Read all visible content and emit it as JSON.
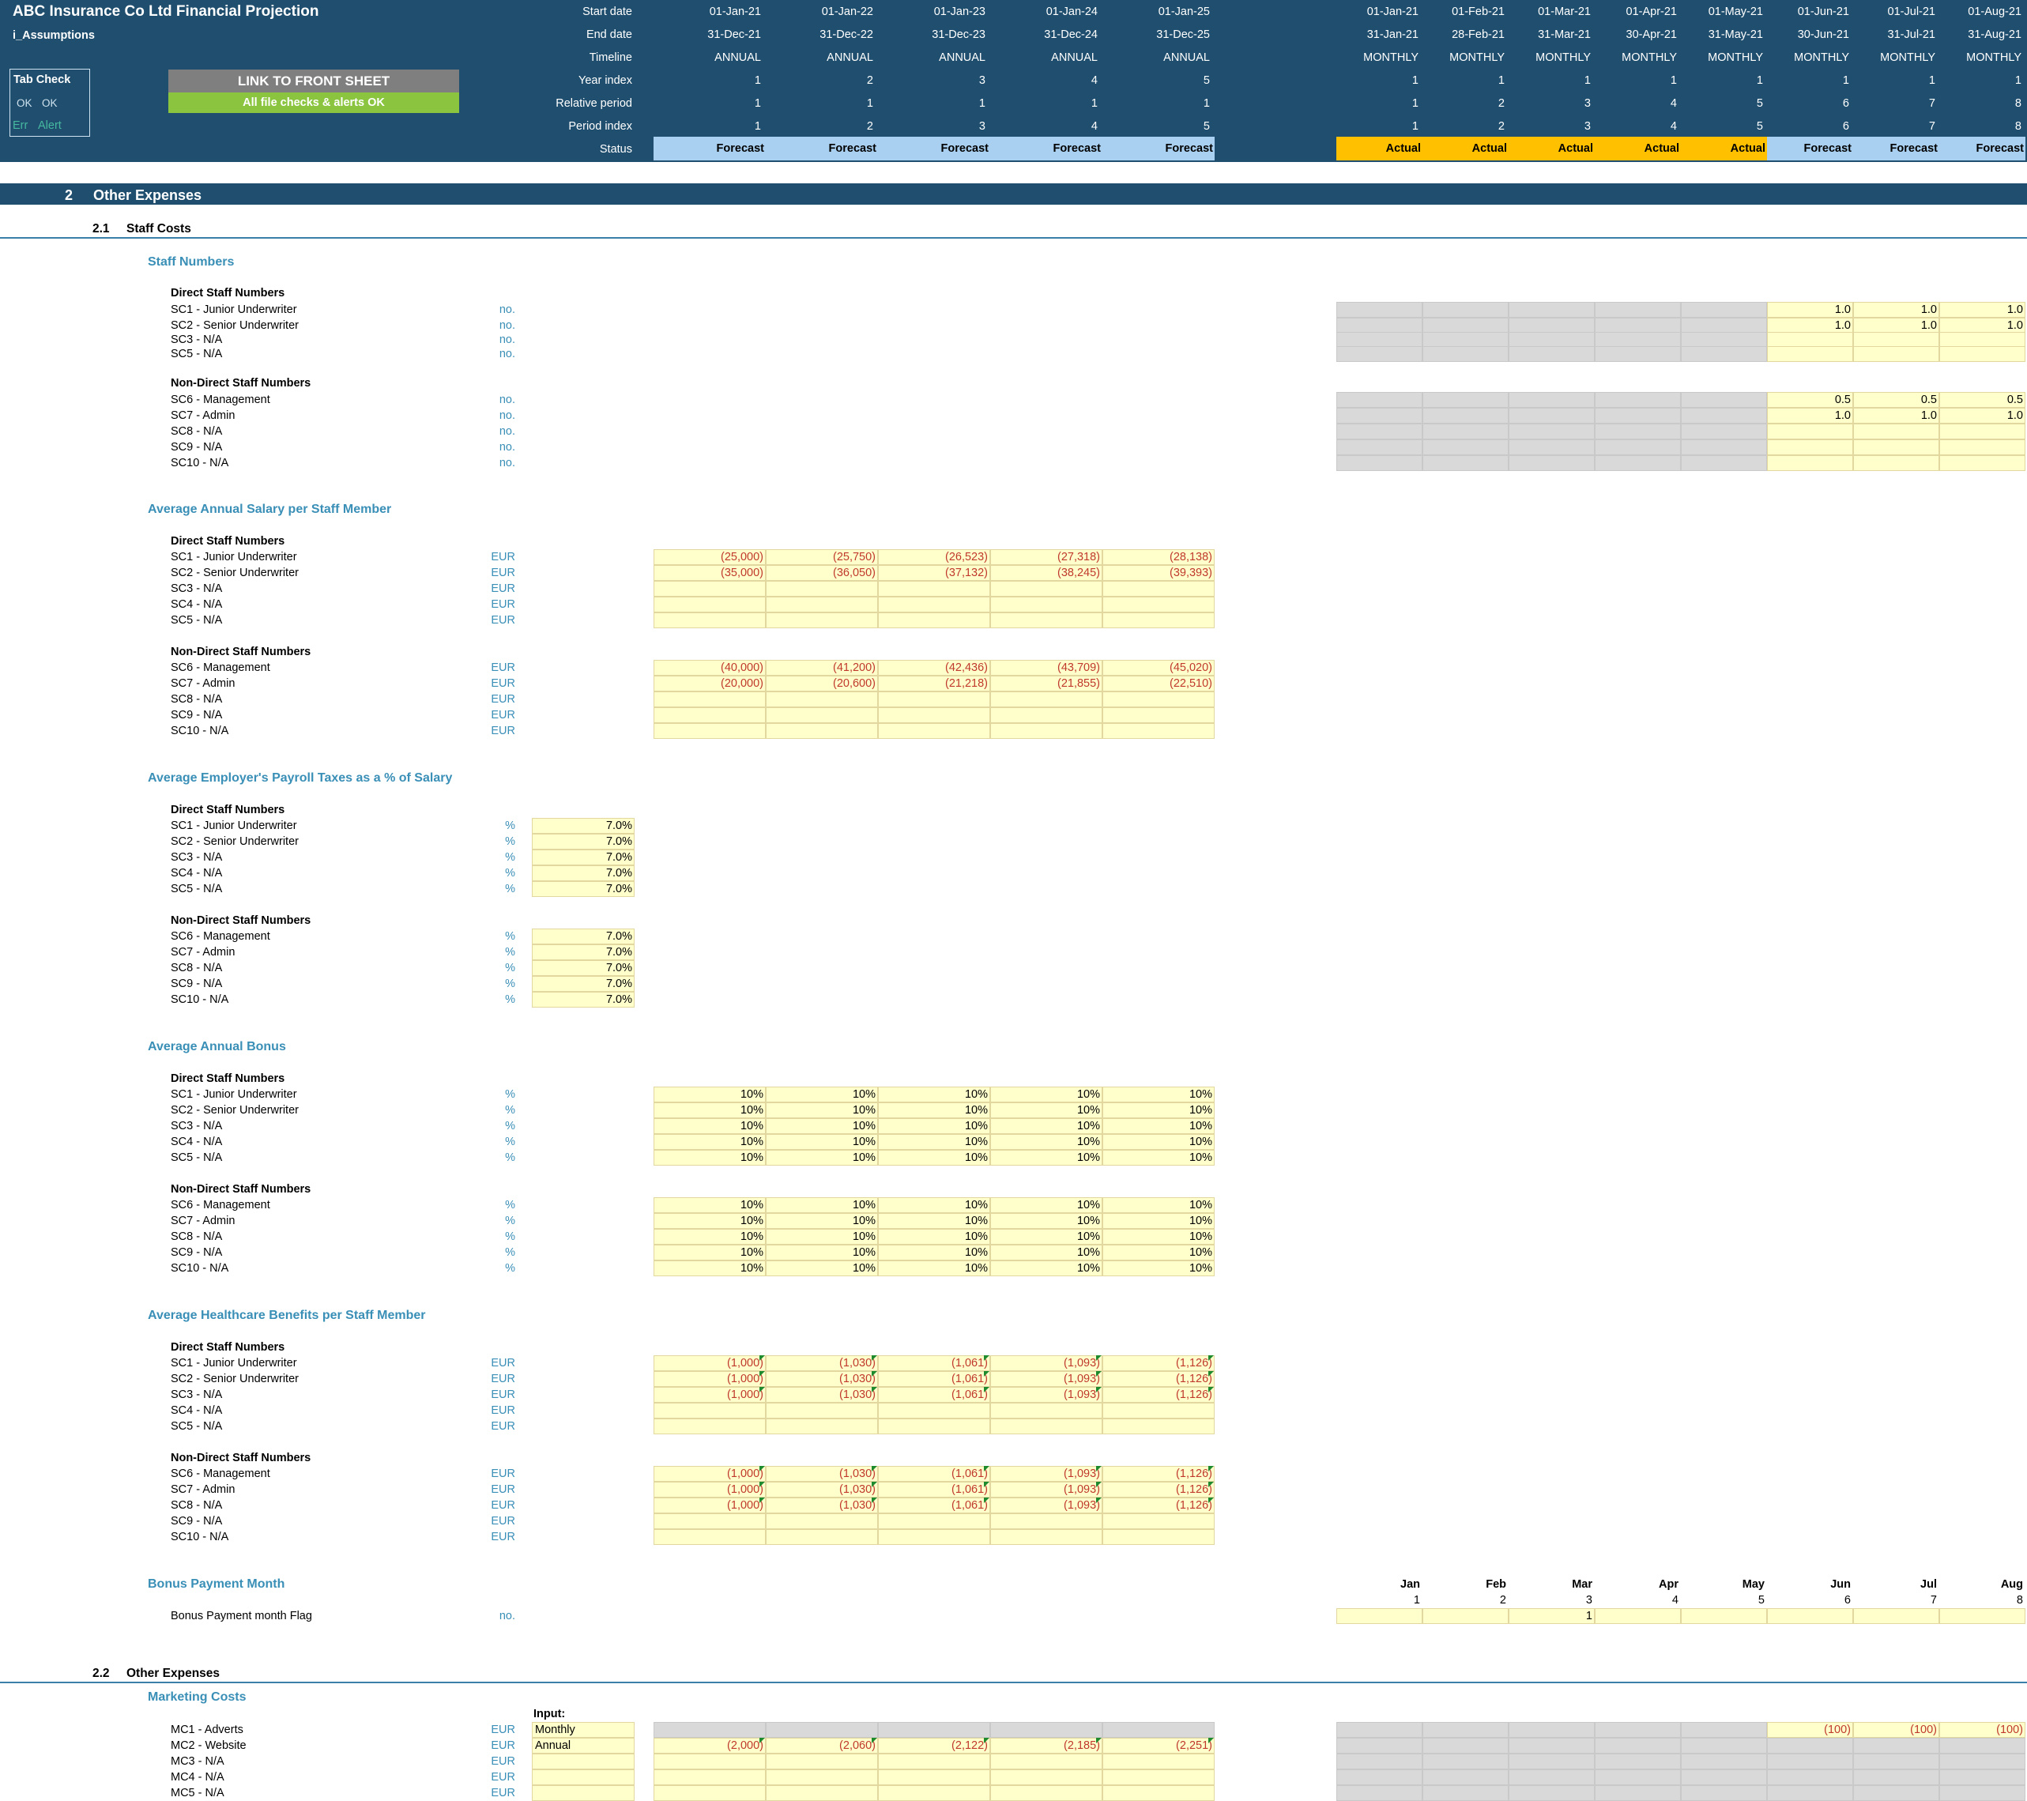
{
  "header": {
    "title": "ABC Insurance Co Ltd Financial Projection",
    "sheet": "i_Assumptions",
    "tab_check": {
      "title": "Tab Check",
      "ok1": "OK",
      "ok2": "OK",
      "err": "Err",
      "alert": "Alert"
    },
    "link_button": "LINK TO FRONT SHEET",
    "checks_status": "All file checks & alerts OK",
    "row_labels": [
      "Start date",
      "End date",
      "Timeline",
      "Year index",
      "Relative period",
      "Period index",
      "Status"
    ],
    "annual": {
      "start": [
        "01-Jan-21",
        "01-Jan-22",
        "01-Jan-23",
        "01-Jan-24",
        "01-Jan-25"
      ],
      "end": [
        "31-Dec-21",
        "31-Dec-22",
        "31-Dec-23",
        "31-Dec-24",
        "31-Dec-25"
      ],
      "timeline": [
        "ANNUAL",
        "ANNUAL",
        "ANNUAL",
        "ANNUAL",
        "ANNUAL"
      ],
      "year_index": [
        "1",
        "2",
        "3",
        "4",
        "5"
      ],
      "relative": [
        "1",
        "1",
        "1",
        "1",
        "1"
      ],
      "period_index": [
        "1",
        "2",
        "3",
        "4",
        "5"
      ],
      "status": [
        "Forecast",
        "Forecast",
        "Forecast",
        "Forecast",
        "Forecast"
      ]
    },
    "monthly": {
      "start": [
        "01-Jan-21",
        "01-Feb-21",
        "01-Mar-21",
        "01-Apr-21",
        "01-May-21",
        "01-Jun-21",
        "01-Jul-21",
        "01-Aug-21"
      ],
      "end": [
        "31-Jan-21",
        "28-Feb-21",
        "31-Mar-21",
        "30-Apr-21",
        "31-May-21",
        "30-Jun-21",
        "31-Jul-21",
        "31-Aug-21"
      ],
      "timeline": [
        "MONTHLY",
        "MONTHLY",
        "MONTHLY",
        "MONTHLY",
        "MONTHLY",
        "MONTHLY",
        "MONTHLY",
        "MONTHLY"
      ],
      "year_index": [
        "1",
        "1",
        "1",
        "1",
        "1",
        "1",
        "1",
        "1"
      ],
      "relative": [
        "1",
        "2",
        "3",
        "4",
        "5",
        "6",
        "7",
        "8"
      ],
      "period_index": [
        "1",
        "2",
        "3",
        "4",
        "5",
        "6",
        "7",
        "8"
      ],
      "status": [
        "Actual",
        "Actual",
        "Actual",
        "Actual",
        "Actual",
        "Forecast",
        "Forecast",
        "Forecast"
      ]
    }
  },
  "colors": {
    "header_bg": "#1f4e6e",
    "forecast": "#a9d0f0",
    "actual": "#ffc000",
    "input": "#ffffcc",
    "link_button": "#7f7f7f",
    "ok_bar": "#8bc53f",
    "section_text": "#3a8fb7",
    "negative": "#c0392b"
  },
  "section": {
    "number": "2",
    "title": "Other Expenses"
  },
  "subsections": [
    {
      "number": "2.1",
      "title": "Staff Costs"
    },
    {
      "number": "2.2",
      "title": "Other Expenses"
    }
  ],
  "groups": {
    "direct": "Direct Staff Numbers",
    "non_direct": "Non-Direct Staff Numbers"
  },
  "staff_numbers": {
    "title": "Staff Numbers",
    "direct": [
      {
        "label": "SC1 - Junior Underwriter",
        "unit": "no.",
        "m": [
          "",
          "",
          "",
          "",
          "",
          "1.0",
          "1.0",
          "1.0"
        ]
      },
      {
        "label": "SC2 - Senior Underwriter",
        "unit": "no.",
        "m": [
          "",
          "",
          "",
          "",
          "",
          "1.0",
          "1.0",
          "1.0"
        ]
      },
      {
        "label": "SC3 - N/A",
        "unit": "no.",
        "m": [
          "",
          "",
          "",
          "",
          "",
          "",
          "",
          ""
        ]
      },
      {
        "label": "SC5 - N/A",
        "unit": "no.",
        "m": [
          "",
          "",
          "",
          "",
          "",
          "",
          "",
          ""
        ]
      }
    ],
    "non_direct": [
      {
        "label": "SC6 - Management",
        "unit": "no.",
        "m": [
          "",
          "",
          "",
          "",
          "",
          "0.5",
          "0.5",
          "0.5"
        ]
      },
      {
        "label": "SC7 - Admin",
        "unit": "no.",
        "m": [
          "",
          "",
          "",
          "",
          "",
          "1.0",
          "1.0",
          "1.0"
        ]
      },
      {
        "label": "SC8 - N/A",
        "unit": "no.",
        "m": [
          "",
          "",
          "",
          "",
          "",
          "",
          "",
          ""
        ]
      },
      {
        "label": "SC9 - N/A",
        "unit": "no.",
        "m": [
          "",
          "",
          "",
          "",
          "",
          "",
          "",
          ""
        ]
      },
      {
        "label": "SC10 - N/A",
        "unit": "no.",
        "m": [
          "",
          "",
          "",
          "",
          "",
          "",
          "",
          ""
        ]
      }
    ]
  },
  "salary": {
    "title": "Average Annual Salary per Staff Member",
    "direct": [
      {
        "label": "SC1 - Junior Underwriter",
        "unit": "EUR",
        "a": [
          "(25,000)",
          "(25,750)",
          "(26,523)",
          "(27,318)",
          "(28,138)"
        ]
      },
      {
        "label": "SC2 - Senior Underwriter",
        "unit": "EUR",
        "a": [
          "(35,000)",
          "(36,050)",
          "(37,132)",
          "(38,245)",
          "(39,393)"
        ]
      },
      {
        "label": "SC3 - N/A",
        "unit": "EUR",
        "a": [
          "",
          "",
          "",
          "",
          ""
        ]
      },
      {
        "label": "SC4 - N/A",
        "unit": "EUR",
        "a": [
          "",
          "",
          "",
          "",
          ""
        ]
      },
      {
        "label": "SC5 - N/A",
        "unit": "EUR",
        "a": [
          "",
          "",
          "",
          "",
          ""
        ]
      }
    ],
    "non_direct": [
      {
        "label": "SC6 - Management",
        "unit": "EUR",
        "a": [
          "(40,000)",
          "(41,200)",
          "(42,436)",
          "(43,709)",
          "(45,020)"
        ]
      },
      {
        "label": "SC7 - Admin",
        "unit": "EUR",
        "a": [
          "(20,000)",
          "(20,600)",
          "(21,218)",
          "(21,855)",
          "(22,510)"
        ]
      },
      {
        "label": "SC8 - N/A",
        "unit": "EUR",
        "a": [
          "",
          "",
          "",
          "",
          ""
        ]
      },
      {
        "label": "SC9 - N/A",
        "unit": "EUR",
        "a": [
          "",
          "",
          "",
          "",
          ""
        ]
      },
      {
        "label": "SC10 - N/A",
        "unit": "EUR",
        "a": [
          "",
          "",
          "",
          "",
          ""
        ]
      }
    ]
  },
  "payroll": {
    "title": "Average Employer's Payroll Taxes as a % of Salary",
    "direct": [
      {
        "label": "SC1 - Junior Underwriter",
        "unit": "%",
        "v": "7.0%"
      },
      {
        "label": "SC2 - Senior Underwriter",
        "unit": "%",
        "v": "7.0%"
      },
      {
        "label": "SC3 - N/A",
        "unit": "%",
        "v": "7.0%"
      },
      {
        "label": "SC4 - N/A",
        "unit": "%",
        "v": "7.0%"
      },
      {
        "label": "SC5 - N/A",
        "unit": "%",
        "v": "7.0%"
      }
    ],
    "non_direct": [
      {
        "label": "SC6 - Management",
        "unit": "%",
        "v": "7.0%"
      },
      {
        "label": "SC7 - Admin",
        "unit": "%",
        "v": "7.0%"
      },
      {
        "label": "SC8 - N/A",
        "unit": "%",
        "v": "7.0%"
      },
      {
        "label": "SC9 - N/A",
        "unit": "%",
        "v": "7.0%"
      },
      {
        "label": "SC10 - N/A",
        "unit": "%",
        "v": "7.0%"
      }
    ]
  },
  "bonus": {
    "title": "Average Annual Bonus",
    "direct": [
      {
        "label": "SC1 - Junior Underwriter",
        "unit": "%",
        "a": [
          "10%",
          "10%",
          "10%",
          "10%",
          "10%"
        ]
      },
      {
        "label": "SC2 - Senior Underwriter",
        "unit": "%",
        "a": [
          "10%",
          "10%",
          "10%",
          "10%",
          "10%"
        ]
      },
      {
        "label": "SC3 - N/A",
        "unit": "%",
        "a": [
          "10%",
          "10%",
          "10%",
          "10%",
          "10%"
        ]
      },
      {
        "label": "SC4 - N/A",
        "unit": "%",
        "a": [
          "10%",
          "10%",
          "10%",
          "10%",
          "10%"
        ]
      },
      {
        "label": "SC5 - N/A",
        "unit": "%",
        "a": [
          "10%",
          "10%",
          "10%",
          "10%",
          "10%"
        ]
      }
    ],
    "non_direct": [
      {
        "label": "SC6 - Management",
        "unit": "%",
        "a": [
          "10%",
          "10%",
          "10%",
          "10%",
          "10%"
        ]
      },
      {
        "label": "SC7 - Admin",
        "unit": "%",
        "a": [
          "10%",
          "10%",
          "10%",
          "10%",
          "10%"
        ]
      },
      {
        "label": "SC8 - N/A",
        "unit": "%",
        "a": [
          "10%",
          "10%",
          "10%",
          "10%",
          "10%"
        ]
      },
      {
        "label": "SC9 - N/A",
        "unit": "%",
        "a": [
          "10%",
          "10%",
          "10%",
          "10%",
          "10%"
        ]
      },
      {
        "label": "SC10 - N/A",
        "unit": "%",
        "a": [
          "10%",
          "10%",
          "10%",
          "10%",
          "10%"
        ]
      }
    ]
  },
  "healthcare": {
    "title": "Average Healthcare Benefits per Staff Member",
    "direct": [
      {
        "label": "SC1 - Junior Underwriter",
        "unit": "EUR",
        "a": [
          "(1,000)",
          "(1,030)",
          "(1,061)",
          "(1,093)",
          "(1,126)"
        ]
      },
      {
        "label": "SC2 - Senior Underwriter",
        "unit": "EUR",
        "a": [
          "(1,000)",
          "(1,030)",
          "(1,061)",
          "(1,093)",
          "(1,126)"
        ]
      },
      {
        "label": "SC3 - N/A",
        "unit": "EUR",
        "a": [
          "(1,000)",
          "(1,030)",
          "(1,061)",
          "(1,093)",
          "(1,126)"
        ]
      },
      {
        "label": "SC4 - N/A",
        "unit": "EUR",
        "a": [
          "",
          "",
          "",
          "",
          ""
        ]
      },
      {
        "label": "SC5 - N/A",
        "unit": "EUR",
        "a": [
          "",
          "",
          "",
          "",
          ""
        ]
      }
    ],
    "non_direct": [
      {
        "label": "SC6 - Management",
        "unit": "EUR",
        "a": [
          "(1,000)",
          "(1,030)",
          "(1,061)",
          "(1,093)",
          "(1,126)"
        ]
      },
      {
        "label": "SC7 - Admin",
        "unit": "EUR",
        "a": [
          "(1,000)",
          "(1,030)",
          "(1,061)",
          "(1,093)",
          "(1,126)"
        ]
      },
      {
        "label": "SC8 - N/A",
        "unit": "EUR",
        "a": [
          "(1,000)",
          "(1,030)",
          "(1,061)",
          "(1,093)",
          "(1,126)"
        ]
      },
      {
        "label": "SC9 - N/A",
        "unit": "EUR",
        "a": [
          "",
          "",
          "",
          "",
          ""
        ]
      },
      {
        "label": "SC10 - N/A",
        "unit": "EUR",
        "a": [
          "",
          "",
          "",
          "",
          ""
        ]
      }
    ]
  },
  "bonus_month": {
    "title": "Bonus Payment Month",
    "months": [
      "Jan",
      "Feb",
      "Mar",
      "Apr",
      "May",
      "Jun",
      "Jul",
      "Aug"
    ],
    "nums": [
      "1",
      "2",
      "3",
      "4",
      "5",
      "6",
      "7",
      "8"
    ],
    "flag_label": "Bonus Payment month Flag",
    "flag_unit": "no.",
    "flags": [
      "",
      "",
      "1",
      "",
      "",
      "",
      "",
      ""
    ]
  },
  "marketing": {
    "title": "Marketing Costs",
    "input_header": "Input:",
    "rows": [
      {
        "label": "MC1 - Adverts",
        "unit": "EUR",
        "input": "Monthly",
        "a": [
          "",
          "",
          "",
          "",
          ""
        ],
        "m": [
          "",
          "",
          "",
          "",
          "",
          "(100)",
          "(100)",
          "(100)"
        ]
      },
      {
        "label": "MC2 - Website",
        "unit": "EUR",
        "input": "Annual",
        "a": [
          "(2,000)",
          "(2,060)",
          "(2,122)",
          "(2,185)",
          "(2,251)"
        ],
        "m": [
          "",
          "",
          "",
          "",
          "",
          "",
          "",
          ""
        ]
      },
      {
        "label": "MC3 - N/A",
        "unit": "EUR",
        "input": "",
        "a": [
          "",
          "",
          "",
          "",
          ""
        ],
        "m": [
          "",
          "",
          "",
          "",
          "",
          "",
          "",
          ""
        ]
      },
      {
        "label": "MC4 - N/A",
        "unit": "EUR",
        "input": "",
        "a": [
          "",
          "",
          "",
          "",
          ""
        ],
        "m": [
          "",
          "",
          "",
          "",
          "",
          "",
          "",
          ""
        ]
      },
      {
        "label": "MC5 - N/A",
        "unit": "EUR",
        "input": "",
        "a": [
          "",
          "",
          "",
          "",
          ""
        ],
        "m": [
          "",
          "",
          "",
          "",
          "",
          "",
          "",
          ""
        ]
      }
    ]
  }
}
